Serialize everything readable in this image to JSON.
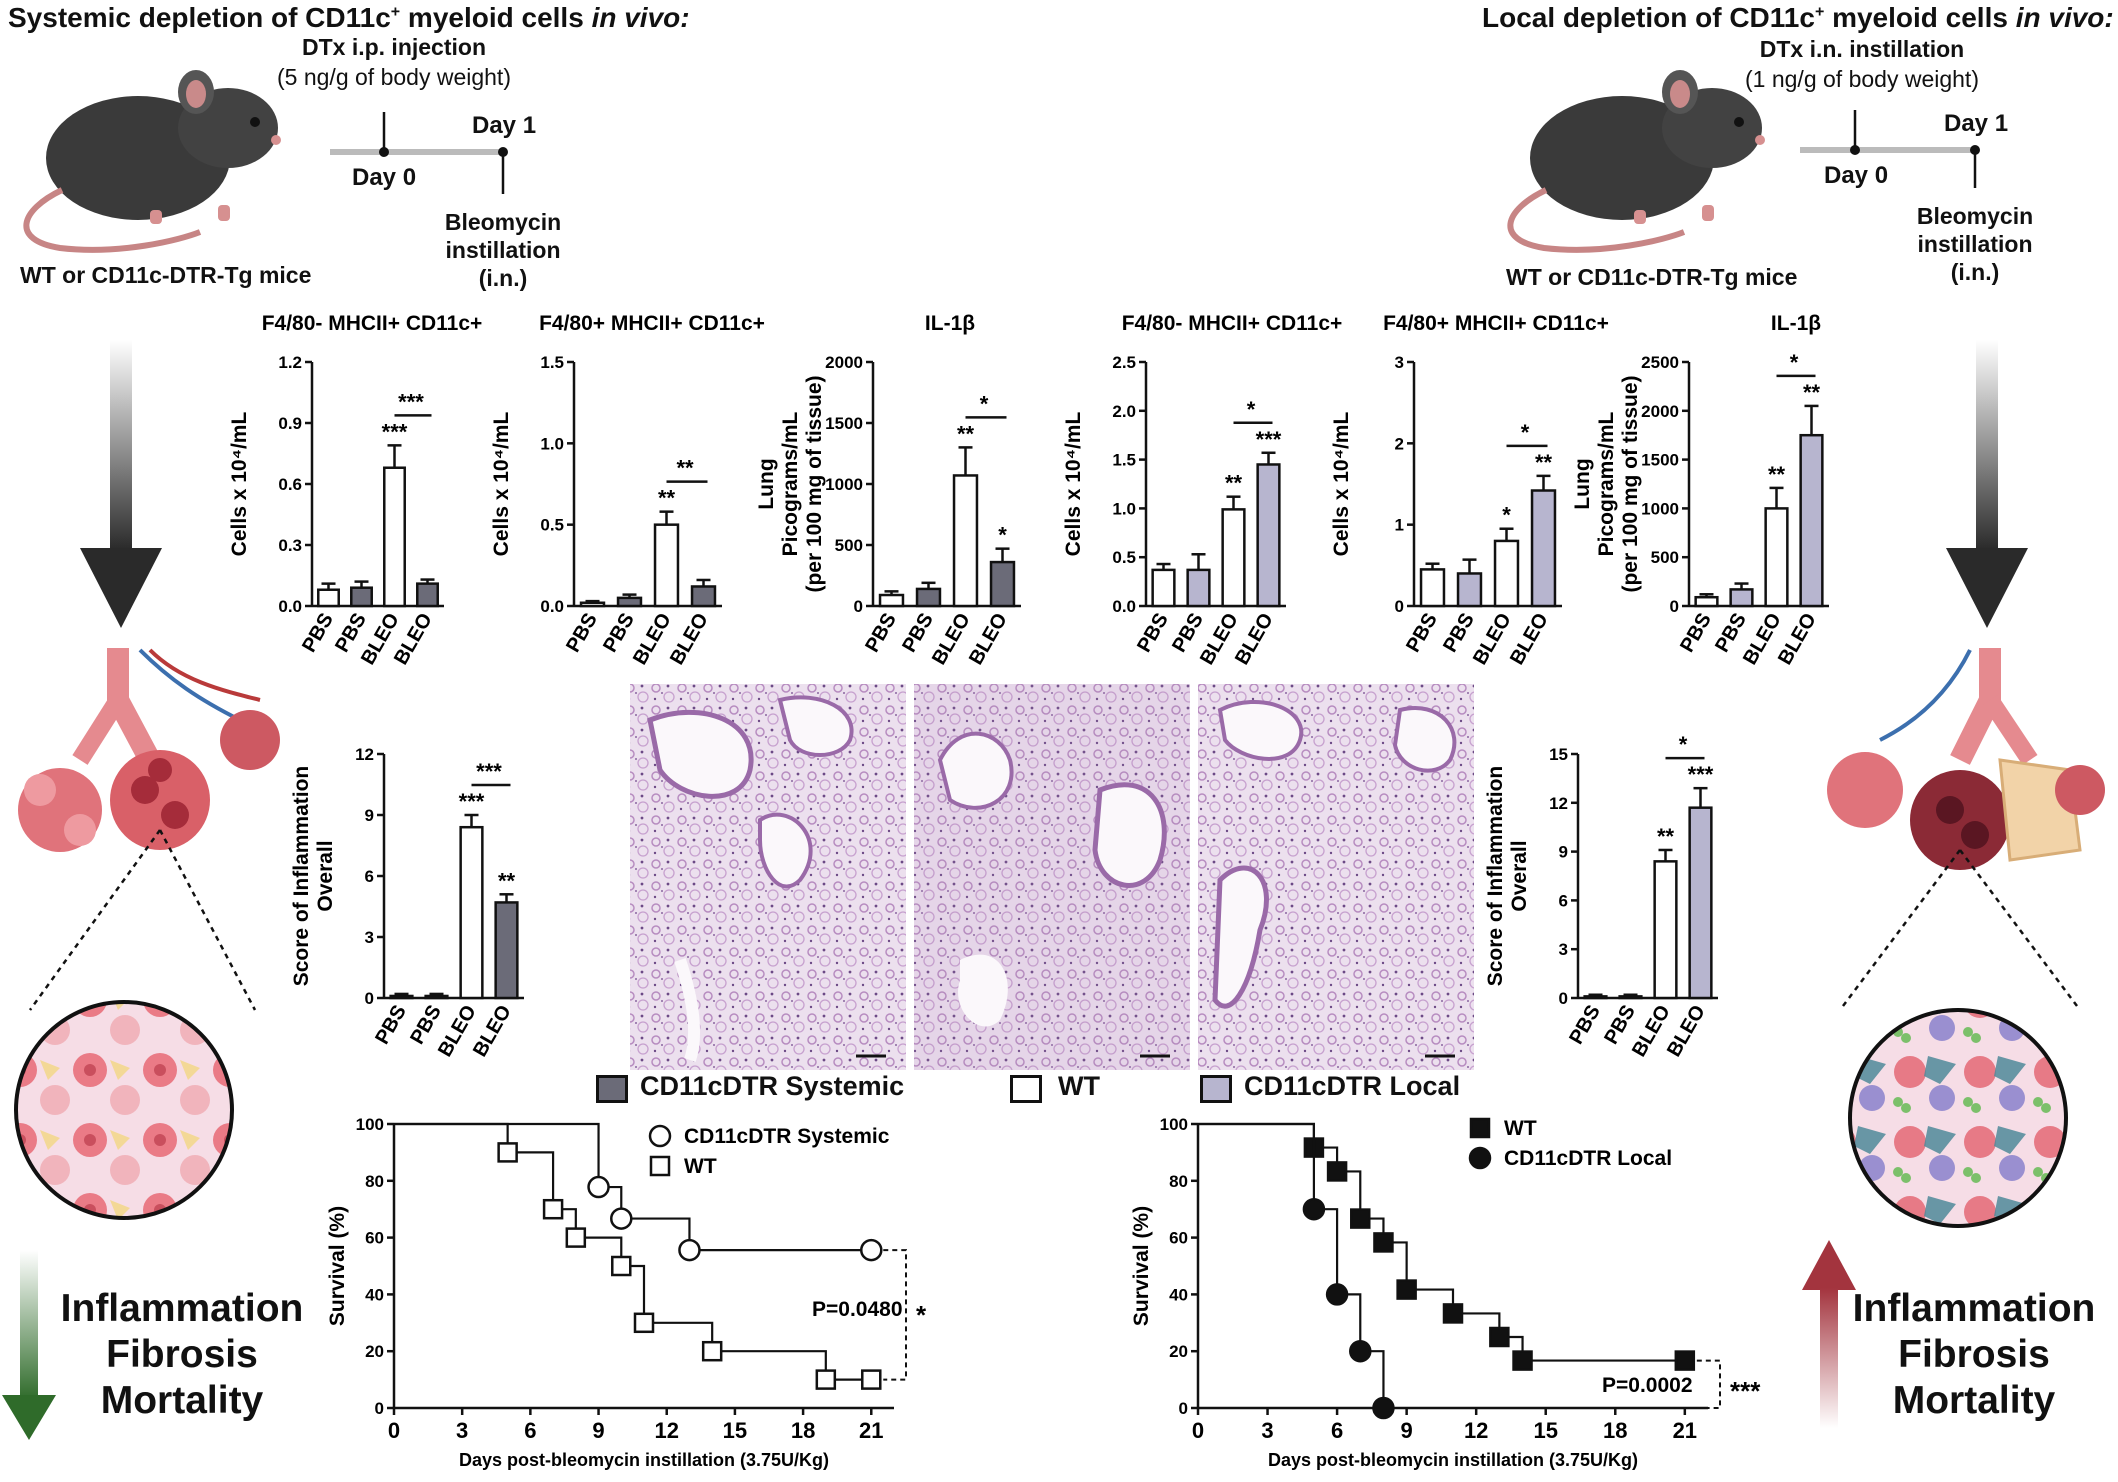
{
  "left_panel": {
    "title": "Systemic depletion of CD11c",
    "title_sup": "+",
    "title_rest": " myeloid cells ",
    "title_italic": "in vivo:",
    "treatment": "DTx i.p. injection",
    "dose": "(5 ng/g of body weight)",
    "day0": "Day 0",
    "day1": "Day 1",
    "bleo_1": "Bleomycin",
    "bleo_2": "instillation",
    "bleo_3": "(i.n.)",
    "mice": "WT or CD11c-DTR-Tg mice",
    "outcome": [
      "Inflammation",
      "Fibrosis",
      "Mortality"
    ]
  },
  "right_panel": {
    "title": "Local depletion of CD11c",
    "title_sup": "+",
    "title_rest": " myeloid cells ",
    "title_italic": "in vivo:",
    "treatment": "DTx i.n. instillation",
    "dose": "(1 ng/g of body weight)",
    "day0": "Day 0",
    "day1": "Day 1",
    "bleo_1": "Bleomycin",
    "bleo_2": "instillation",
    "bleo_3": "(i.n.)",
    "mice": "WT or CD11c-DTR-Tg mice",
    "outcome": [
      "Inflammation",
      "Fibrosis",
      "Mortality"
    ]
  },
  "legend": {
    "systemic": "CD11cDTR Systemic",
    "wt": "WT",
    "local": "CD11cDTR Local"
  },
  "colors": {
    "systemic": "#6b6b78",
    "local": "#b7b5cf",
    "wt": "#ffffff",
    "down_arrow": "#2f6b2a",
    "up_arrow": "#a3343e",
    "tissue": "#c9a6cc"
  },
  "icons": [
    "mouse-icon",
    "lung-icon",
    "cell-zoom-icon",
    "arrow-down-icon",
    "arrow-up-icon",
    "histology-image"
  ],
  "chart_data": [
    {
      "id": "b1",
      "type": "bar",
      "title": "F4/80- MHCII+ CD11c+",
      "ylabel": "Cells x 10⁴/mL",
      "ylim": [
        0,
        1.2
      ],
      "yticks": [
        "0.0",
        "0.3",
        "0.6",
        "0.9",
        "1.2"
      ],
      "categories": [
        "PBS",
        "PBS",
        "BLEO",
        "BLEO"
      ],
      "groups": [
        "wt",
        "systemic",
        "wt",
        "systemic"
      ],
      "values": [
        0.08,
        0.09,
        0.68,
        0.11
      ],
      "errors": [
        0.03,
        0.03,
        0.11,
        0.02
      ],
      "stars": [
        "",
        "",
        "***",
        ""
      ],
      "bracket": {
        "from": 2,
        "to": 3,
        "label": "***"
      }
    },
    {
      "id": "b2",
      "type": "bar",
      "title": "F4/80+ MHCII+ CD11c+",
      "ylabel": "Cells x 10⁴/mL",
      "ylim": [
        0,
        1.5
      ],
      "yticks": [
        "0.0",
        "0.5",
        "1.0",
        "1.5"
      ],
      "categories": [
        "PBS",
        "PBS",
        "BLEO",
        "BLEO"
      ],
      "groups": [
        "wt",
        "systemic",
        "wt",
        "systemic"
      ],
      "values": [
        0.02,
        0.05,
        0.5,
        0.12
      ],
      "errors": [
        0.01,
        0.02,
        0.08,
        0.04
      ],
      "stars": [
        "",
        "",
        "**",
        ""
      ],
      "bracket": {
        "from": 2,
        "to": 3,
        "label": "**"
      }
    },
    {
      "id": "b3",
      "type": "bar",
      "title": "IL-1β",
      "ylabel_lines": [
        "Lung",
        "Picograms/mL",
        "(per 100 mg of tissue)"
      ],
      "ylim": [
        0,
        2000
      ],
      "yticks": [
        "0",
        "500",
        "1000",
        "1500",
        "2000"
      ],
      "categories": [
        "PBS",
        "PBS",
        "BLEO",
        "BLEO"
      ],
      "groups": [
        "wt",
        "systemic",
        "wt",
        "systemic"
      ],
      "values": [
        90,
        140,
        1070,
        360
      ],
      "errors": [
        30,
        50,
        230,
        110
      ],
      "stars": [
        "",
        "",
        "**",
        "*"
      ],
      "bracket": {
        "from": 2,
        "to": 3,
        "label": "*"
      }
    },
    {
      "id": "b4",
      "type": "bar",
      "title": "F4/80- MHCII+ CD11c+",
      "ylabel": "Cells x 10⁴/mL",
      "ylim": [
        0,
        2.5
      ],
      "yticks": [
        "0.0",
        "0.5",
        "1.0",
        "1.5",
        "2.0",
        "2.5"
      ],
      "categories": [
        "PBS",
        "PBS",
        "BLEO",
        "BLEO"
      ],
      "groups": [
        "wt",
        "local",
        "wt",
        "local"
      ],
      "values": [
        0.37,
        0.37,
        0.99,
        1.45
      ],
      "errors": [
        0.06,
        0.16,
        0.13,
        0.12
      ],
      "stars": [
        "",
        "",
        "**",
        "***"
      ],
      "bracket": {
        "from": 2,
        "to": 3,
        "label": "*"
      }
    },
    {
      "id": "b5",
      "type": "bar",
      "title": "F4/80+ MHCII+ CD11c+",
      "ylabel": "Cells x 10⁴/mL",
      "ylim": [
        0,
        3
      ],
      "yticks": [
        "0",
        "1",
        "2",
        "3"
      ],
      "categories": [
        "PBS",
        "PBS",
        "BLEO",
        "BLEO"
      ],
      "groups": [
        "wt",
        "local",
        "wt",
        "local"
      ],
      "values": [
        0.45,
        0.4,
        0.8,
        1.42
      ],
      "errors": [
        0.07,
        0.17,
        0.15,
        0.18
      ],
      "stars": [
        "",
        "",
        "*",
        "**"
      ],
      "bracket": {
        "from": 2,
        "to": 3,
        "label": "*"
      }
    },
    {
      "id": "b6",
      "type": "bar",
      "title": "IL-1β",
      "ylabel_lines": [
        "Lung",
        "Picograms/mL",
        "(per 100 mg of tissue)"
      ],
      "ylim": [
        0,
        2500
      ],
      "yticks": [
        "0",
        "500",
        "1000",
        "1500",
        "2000",
        "2500"
      ],
      "categories": [
        "PBS",
        "PBS",
        "BLEO",
        "BLEO"
      ],
      "groups": [
        "wt",
        "local",
        "wt",
        "local"
      ],
      "values": [
        90,
        170,
        1000,
        1750
      ],
      "errors": [
        30,
        60,
        210,
        300
      ],
      "stars": [
        "",
        "",
        "**",
        "**"
      ],
      "bracket": {
        "from": 2,
        "to": 3,
        "label": "*"
      }
    },
    {
      "id": "b7",
      "type": "bar",
      "ylabel_lines": [
        "Score of Inflammation",
        "Overall"
      ],
      "ylim": [
        0,
        12
      ],
      "yticks": [
        "0",
        "3",
        "6",
        "9",
        "12"
      ],
      "categories": [
        "PBS",
        "PBS",
        "BLEO",
        "BLEO"
      ],
      "groups": [
        "wt",
        "systemic",
        "wt",
        "systemic"
      ],
      "values": [
        0.1,
        0.1,
        8.4,
        4.7
      ],
      "errors": [
        0.1,
        0.1,
        0.6,
        0.4
      ],
      "stars": [
        "",
        "",
        "***",
        "**"
      ],
      "bracket": {
        "from": 2,
        "to": 3,
        "label": "***"
      }
    },
    {
      "id": "b8",
      "type": "bar",
      "ylabel_lines": [
        "Score of Inflammation",
        "Overall"
      ],
      "ylim": [
        0,
        15
      ],
      "yticks": [
        "0",
        "3",
        "6",
        "9",
        "12",
        "15"
      ],
      "categories": [
        "PBS",
        "PBS",
        "BLEO",
        "BLEO"
      ],
      "groups": [
        "wt",
        "local",
        "wt",
        "local"
      ],
      "values": [
        0.1,
        0.1,
        8.4,
        11.7
      ],
      "errors": [
        0.1,
        0.1,
        0.7,
        1.2
      ],
      "stars": [
        "",
        "",
        "**",
        "***"
      ],
      "bracket": {
        "from": 2,
        "to": 3,
        "label": "*"
      }
    },
    {
      "id": "s1",
      "type": "line",
      "subtype": "survival",
      "xlabel": "Days post-bleomycin instillation (3.75U/Kg)",
      "ylabel": "Survival (%)",
      "xlim": [
        0,
        22
      ],
      "ylim": [
        0,
        100
      ],
      "xticks": [
        0,
        3,
        6,
        9,
        12,
        15,
        18,
        21
      ],
      "yticks": [
        0,
        20,
        40,
        60,
        80,
        100
      ],
      "series": [
        {
          "name": "CD11cDTR Systemic",
          "marker": "circle",
          "fill": "#ffffff",
          "x": [
            0,
            9,
            10,
            13,
            21
          ],
          "y": [
            100,
            77.8,
            66.7,
            55.6,
            55.6
          ]
        },
        {
          "name": "WT",
          "marker": "square",
          "fill": "#ffffff",
          "x": [
            0,
            5,
            7,
            8,
            10,
            11,
            14,
            19,
            21
          ],
          "y": [
            100,
            90,
            70,
            60,
            50,
            30,
            20,
            10,
            10
          ]
        }
      ],
      "pvalue": "P=0.0480",
      "stars": "*"
    },
    {
      "id": "s2",
      "type": "line",
      "subtype": "survival",
      "xlabel": "Days post-bleomycin instillation (3.75U/Kg)",
      "ylabel": "Survival (%)",
      "xlim": [
        0,
        22
      ],
      "ylim": [
        0,
        100
      ],
      "xticks": [
        0,
        3,
        6,
        9,
        12,
        15,
        18,
        21
      ],
      "yticks": [
        0,
        20,
        40,
        60,
        80,
        100
      ],
      "series": [
        {
          "name": "WT",
          "marker": "square",
          "fill": "#111111",
          "x": [
            0,
            5,
            6,
            7,
            8,
            9,
            11,
            13,
            14,
            21
          ],
          "y": [
            100,
            91.7,
            83.3,
            66.7,
            58.3,
            41.7,
            33.3,
            25,
            16.7,
            16.7
          ]
        },
        {
          "name": "CD11cDTR Local",
          "marker": "circle",
          "fill": "#111111",
          "x": [
            0,
            5,
            6,
            7,
            8
          ],
          "y": [
            100,
            70,
            40,
            20,
            0
          ]
        }
      ],
      "pvalue": "P=0.0002",
      "stars": "***"
    }
  ]
}
